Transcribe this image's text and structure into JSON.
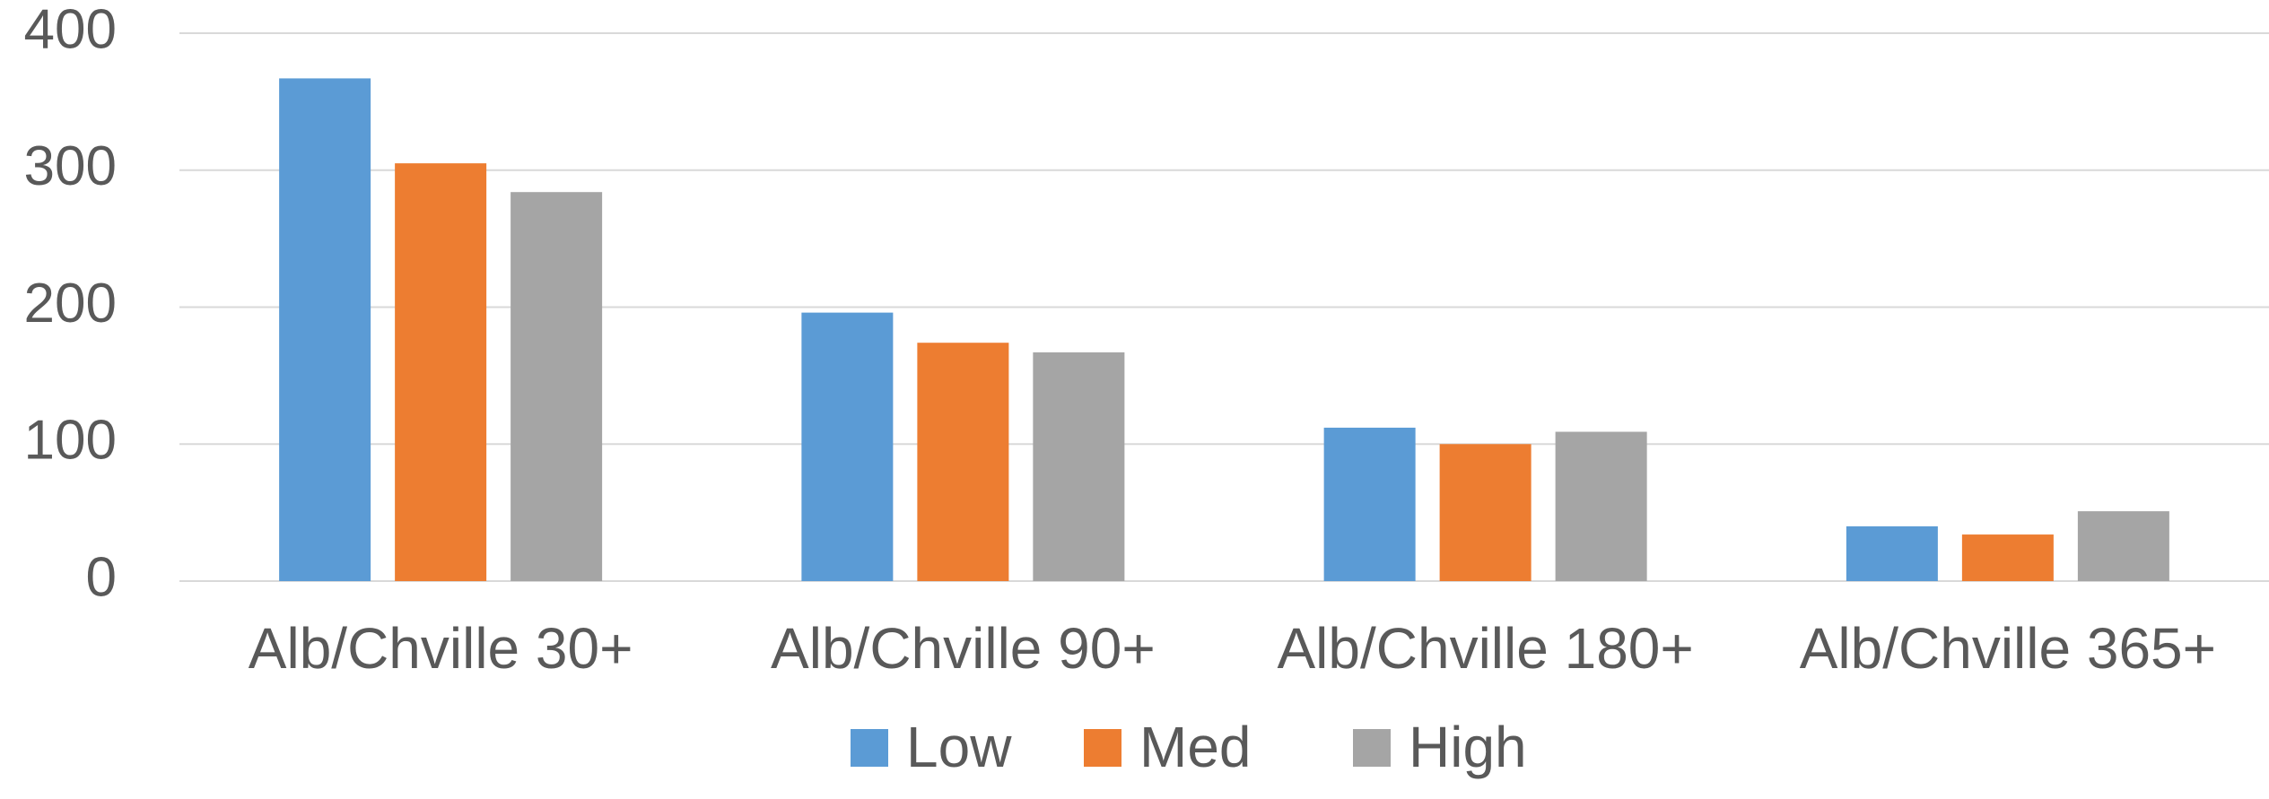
{
  "chart_data": {
    "type": "bar",
    "categories": [
      "Alb/Chville 30+",
      "Alb/Chville 90+",
      "Alb/Chville 180+",
      "Alb/Chville 365+"
    ],
    "series": [
      {
        "name": "Low",
        "color": "#5b9bd5",
        "values": [
          367,
          196,
          112,
          40
        ]
      },
      {
        "name": "Med",
        "color": "#ed7d31",
        "values": [
          305,
          174,
          100,
          34
        ]
      },
      {
        "name": "High",
        "color": "#a5a5a5",
        "values": [
          284,
          167,
          109,
          51
        ]
      }
    ],
    "ylim": [
      0,
      400
    ],
    "yticks": [
      "0",
      "100",
      "200",
      "300",
      "400"
    ],
    "grid": true,
    "legend_position": "bottom"
  }
}
